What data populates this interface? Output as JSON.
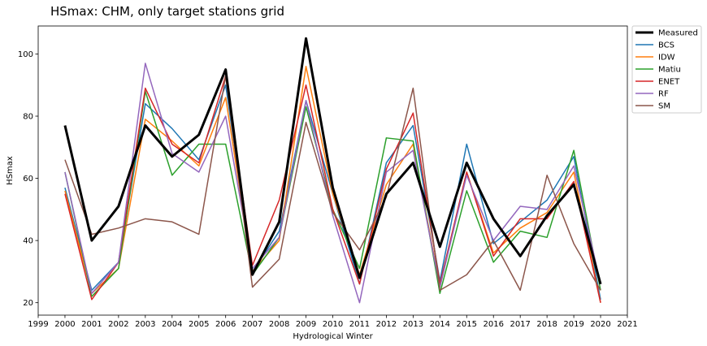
{
  "chart_data": {
    "type": "line",
    "title": "HSmax: CHM, only target stations grid",
    "xlabel": "Hydrological Winter",
    "ylabel": "HSmax",
    "xlim": [
      1999,
      2021
    ],
    "ylim": [
      16,
      109
    ],
    "xticks": [
      1999,
      2000,
      2001,
      2002,
      2003,
      2004,
      2005,
      2006,
      2007,
      2008,
      2009,
      2010,
      2011,
      2012,
      2013,
      2014,
      2015,
      2016,
      2017,
      2018,
      2019,
      2020,
      2021
    ],
    "yticks": [
      20,
      40,
      60,
      80,
      100
    ],
    "x": [
      2000,
      2001,
      2002,
      2003,
      2004,
      2005,
      2006,
      2007,
      2008,
      2009,
      2010,
      2011,
      2012,
      2013,
      2014,
      2015,
      2016,
      2017,
      2018,
      2019,
      2020
    ],
    "legend_position": "outside-top-right",
    "grid": false,
    "series": [
      {
        "name": "Measured",
        "color": "#000000",
        "width": 3,
        "values": [
          77,
          40,
          51,
          77,
          67,
          74,
          95,
          29,
          46,
          105,
          57,
          28,
          55,
          65,
          38,
          65,
          47,
          35,
          48,
          58,
          26
        ]
      },
      {
        "name": "BCS",
        "color": "#1f77b4",
        "width": 1.5,
        "values": [
          57,
          24,
          33,
          84,
          76,
          66,
          90,
          30,
          43,
          85,
          55,
          26,
          65,
          77,
          27,
          71,
          39,
          46,
          53,
          67,
          21
        ]
      },
      {
        "name": "IDW",
        "color": "#ff7f0e",
        "width": 1.5,
        "values": [
          56,
          23,
          31,
          79,
          72,
          64,
          86,
          30,
          40,
          96,
          55,
          29,
          58,
          71,
          25,
          62,
          36,
          44,
          49,
          62,
          20
        ]
      },
      {
        "name": "Matiu",
        "color": "#2ca02c",
        "width": 1.5,
        "values": [
          62,
          22,
          31,
          88,
          61,
          71,
          71,
          29,
          41,
          83,
          50,
          31,
          73,
          72,
          23,
          56,
          33,
          43,
          41,
          69,
          24
        ]
      },
      {
        "name": "ENET",
        "color": "#d62728",
        "width": 1.5,
        "values": [
          55,
          21,
          33,
          89,
          71,
          65,
          93,
          32,
          53,
          90,
          50,
          26,
          63,
          81,
          26,
          62,
          35,
          47,
          47,
          59,
          20
        ]
      },
      {
        "name": "RF",
        "color": "#9467bd",
        "width": 1.5,
        "values": [
          62,
          23,
          33,
          97,
          68,
          62,
          80,
          31,
          41,
          85,
          48,
          20,
          62,
          69,
          25,
          61,
          40,
          51,
          50,
          64,
          26
        ]
      },
      {
        "name": "SM",
        "color": "#8c564b",
        "width": 1.5,
        "values": [
          66,
          42,
          44,
          47,
          46,
          42,
          93,
          25,
          34,
          78,
          49,
          37,
          54,
          89,
          24,
          29,
          40,
          24,
          61,
          39,
          24
        ]
      }
    ]
  }
}
